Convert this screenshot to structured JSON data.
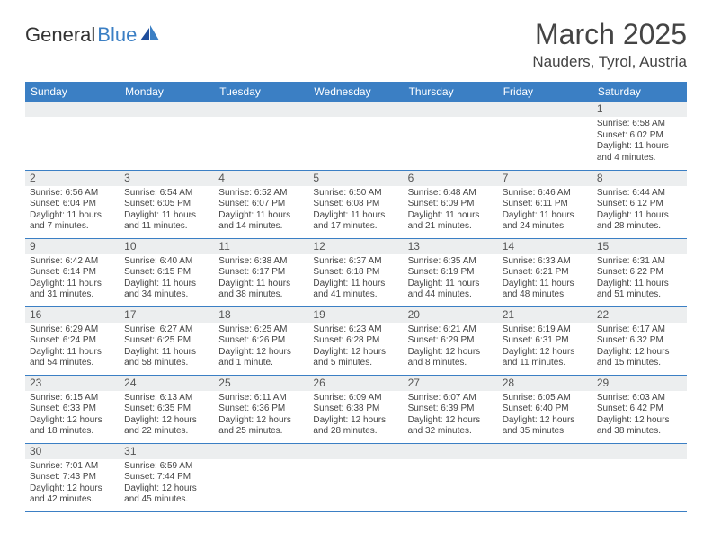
{
  "logo": {
    "text1": "General",
    "text2": "Blue"
  },
  "title": "March 2025",
  "location": "Nauders, Tyrol, Austria",
  "headers": [
    "Sunday",
    "Monday",
    "Tuesday",
    "Wednesday",
    "Thursday",
    "Friday",
    "Saturday"
  ],
  "colors": {
    "accent": "#3b7fc4",
    "daybar": "#eceeef",
    "text": "#444444"
  },
  "weeks": [
    [
      null,
      null,
      null,
      null,
      null,
      null,
      {
        "d": "1",
        "sr": "Sunrise: 6:58 AM",
        "ss": "Sunset: 6:02 PM",
        "dl1": "Daylight: 11 hours",
        "dl2": "and 4 minutes."
      }
    ],
    [
      {
        "d": "2",
        "sr": "Sunrise: 6:56 AM",
        "ss": "Sunset: 6:04 PM",
        "dl1": "Daylight: 11 hours",
        "dl2": "and 7 minutes."
      },
      {
        "d": "3",
        "sr": "Sunrise: 6:54 AM",
        "ss": "Sunset: 6:05 PM",
        "dl1": "Daylight: 11 hours",
        "dl2": "and 11 minutes."
      },
      {
        "d": "4",
        "sr": "Sunrise: 6:52 AM",
        "ss": "Sunset: 6:07 PM",
        "dl1": "Daylight: 11 hours",
        "dl2": "and 14 minutes."
      },
      {
        "d": "5",
        "sr": "Sunrise: 6:50 AM",
        "ss": "Sunset: 6:08 PM",
        "dl1": "Daylight: 11 hours",
        "dl2": "and 17 minutes."
      },
      {
        "d": "6",
        "sr": "Sunrise: 6:48 AM",
        "ss": "Sunset: 6:09 PM",
        "dl1": "Daylight: 11 hours",
        "dl2": "and 21 minutes."
      },
      {
        "d": "7",
        "sr": "Sunrise: 6:46 AM",
        "ss": "Sunset: 6:11 PM",
        "dl1": "Daylight: 11 hours",
        "dl2": "and 24 minutes."
      },
      {
        "d": "8",
        "sr": "Sunrise: 6:44 AM",
        "ss": "Sunset: 6:12 PM",
        "dl1": "Daylight: 11 hours",
        "dl2": "and 28 minutes."
      }
    ],
    [
      {
        "d": "9",
        "sr": "Sunrise: 6:42 AM",
        "ss": "Sunset: 6:14 PM",
        "dl1": "Daylight: 11 hours",
        "dl2": "and 31 minutes."
      },
      {
        "d": "10",
        "sr": "Sunrise: 6:40 AM",
        "ss": "Sunset: 6:15 PM",
        "dl1": "Daylight: 11 hours",
        "dl2": "and 34 minutes."
      },
      {
        "d": "11",
        "sr": "Sunrise: 6:38 AM",
        "ss": "Sunset: 6:17 PM",
        "dl1": "Daylight: 11 hours",
        "dl2": "and 38 minutes."
      },
      {
        "d": "12",
        "sr": "Sunrise: 6:37 AM",
        "ss": "Sunset: 6:18 PM",
        "dl1": "Daylight: 11 hours",
        "dl2": "and 41 minutes."
      },
      {
        "d": "13",
        "sr": "Sunrise: 6:35 AM",
        "ss": "Sunset: 6:19 PM",
        "dl1": "Daylight: 11 hours",
        "dl2": "and 44 minutes."
      },
      {
        "d": "14",
        "sr": "Sunrise: 6:33 AM",
        "ss": "Sunset: 6:21 PM",
        "dl1": "Daylight: 11 hours",
        "dl2": "and 48 minutes."
      },
      {
        "d": "15",
        "sr": "Sunrise: 6:31 AM",
        "ss": "Sunset: 6:22 PM",
        "dl1": "Daylight: 11 hours",
        "dl2": "and 51 minutes."
      }
    ],
    [
      {
        "d": "16",
        "sr": "Sunrise: 6:29 AM",
        "ss": "Sunset: 6:24 PM",
        "dl1": "Daylight: 11 hours",
        "dl2": "and 54 minutes."
      },
      {
        "d": "17",
        "sr": "Sunrise: 6:27 AM",
        "ss": "Sunset: 6:25 PM",
        "dl1": "Daylight: 11 hours",
        "dl2": "and 58 minutes."
      },
      {
        "d": "18",
        "sr": "Sunrise: 6:25 AM",
        "ss": "Sunset: 6:26 PM",
        "dl1": "Daylight: 12 hours",
        "dl2": "and 1 minute."
      },
      {
        "d": "19",
        "sr": "Sunrise: 6:23 AM",
        "ss": "Sunset: 6:28 PM",
        "dl1": "Daylight: 12 hours",
        "dl2": "and 5 minutes."
      },
      {
        "d": "20",
        "sr": "Sunrise: 6:21 AM",
        "ss": "Sunset: 6:29 PM",
        "dl1": "Daylight: 12 hours",
        "dl2": "and 8 minutes."
      },
      {
        "d": "21",
        "sr": "Sunrise: 6:19 AM",
        "ss": "Sunset: 6:31 PM",
        "dl1": "Daylight: 12 hours",
        "dl2": "and 11 minutes."
      },
      {
        "d": "22",
        "sr": "Sunrise: 6:17 AM",
        "ss": "Sunset: 6:32 PM",
        "dl1": "Daylight: 12 hours",
        "dl2": "and 15 minutes."
      }
    ],
    [
      {
        "d": "23",
        "sr": "Sunrise: 6:15 AM",
        "ss": "Sunset: 6:33 PM",
        "dl1": "Daylight: 12 hours",
        "dl2": "and 18 minutes."
      },
      {
        "d": "24",
        "sr": "Sunrise: 6:13 AM",
        "ss": "Sunset: 6:35 PM",
        "dl1": "Daylight: 12 hours",
        "dl2": "and 22 minutes."
      },
      {
        "d": "25",
        "sr": "Sunrise: 6:11 AM",
        "ss": "Sunset: 6:36 PM",
        "dl1": "Daylight: 12 hours",
        "dl2": "and 25 minutes."
      },
      {
        "d": "26",
        "sr": "Sunrise: 6:09 AM",
        "ss": "Sunset: 6:38 PM",
        "dl1": "Daylight: 12 hours",
        "dl2": "and 28 minutes."
      },
      {
        "d": "27",
        "sr": "Sunrise: 6:07 AM",
        "ss": "Sunset: 6:39 PM",
        "dl1": "Daylight: 12 hours",
        "dl2": "and 32 minutes."
      },
      {
        "d": "28",
        "sr": "Sunrise: 6:05 AM",
        "ss": "Sunset: 6:40 PM",
        "dl1": "Daylight: 12 hours",
        "dl2": "and 35 minutes."
      },
      {
        "d": "29",
        "sr": "Sunrise: 6:03 AM",
        "ss": "Sunset: 6:42 PM",
        "dl1": "Daylight: 12 hours",
        "dl2": "and 38 minutes."
      }
    ],
    [
      {
        "d": "30",
        "sr": "Sunrise: 7:01 AM",
        "ss": "Sunset: 7:43 PM",
        "dl1": "Daylight: 12 hours",
        "dl2": "and 42 minutes."
      },
      {
        "d": "31",
        "sr": "Sunrise: 6:59 AM",
        "ss": "Sunset: 7:44 PM",
        "dl1": "Daylight: 12 hours",
        "dl2": "and 45 minutes."
      },
      null,
      null,
      null,
      null,
      null
    ]
  ]
}
